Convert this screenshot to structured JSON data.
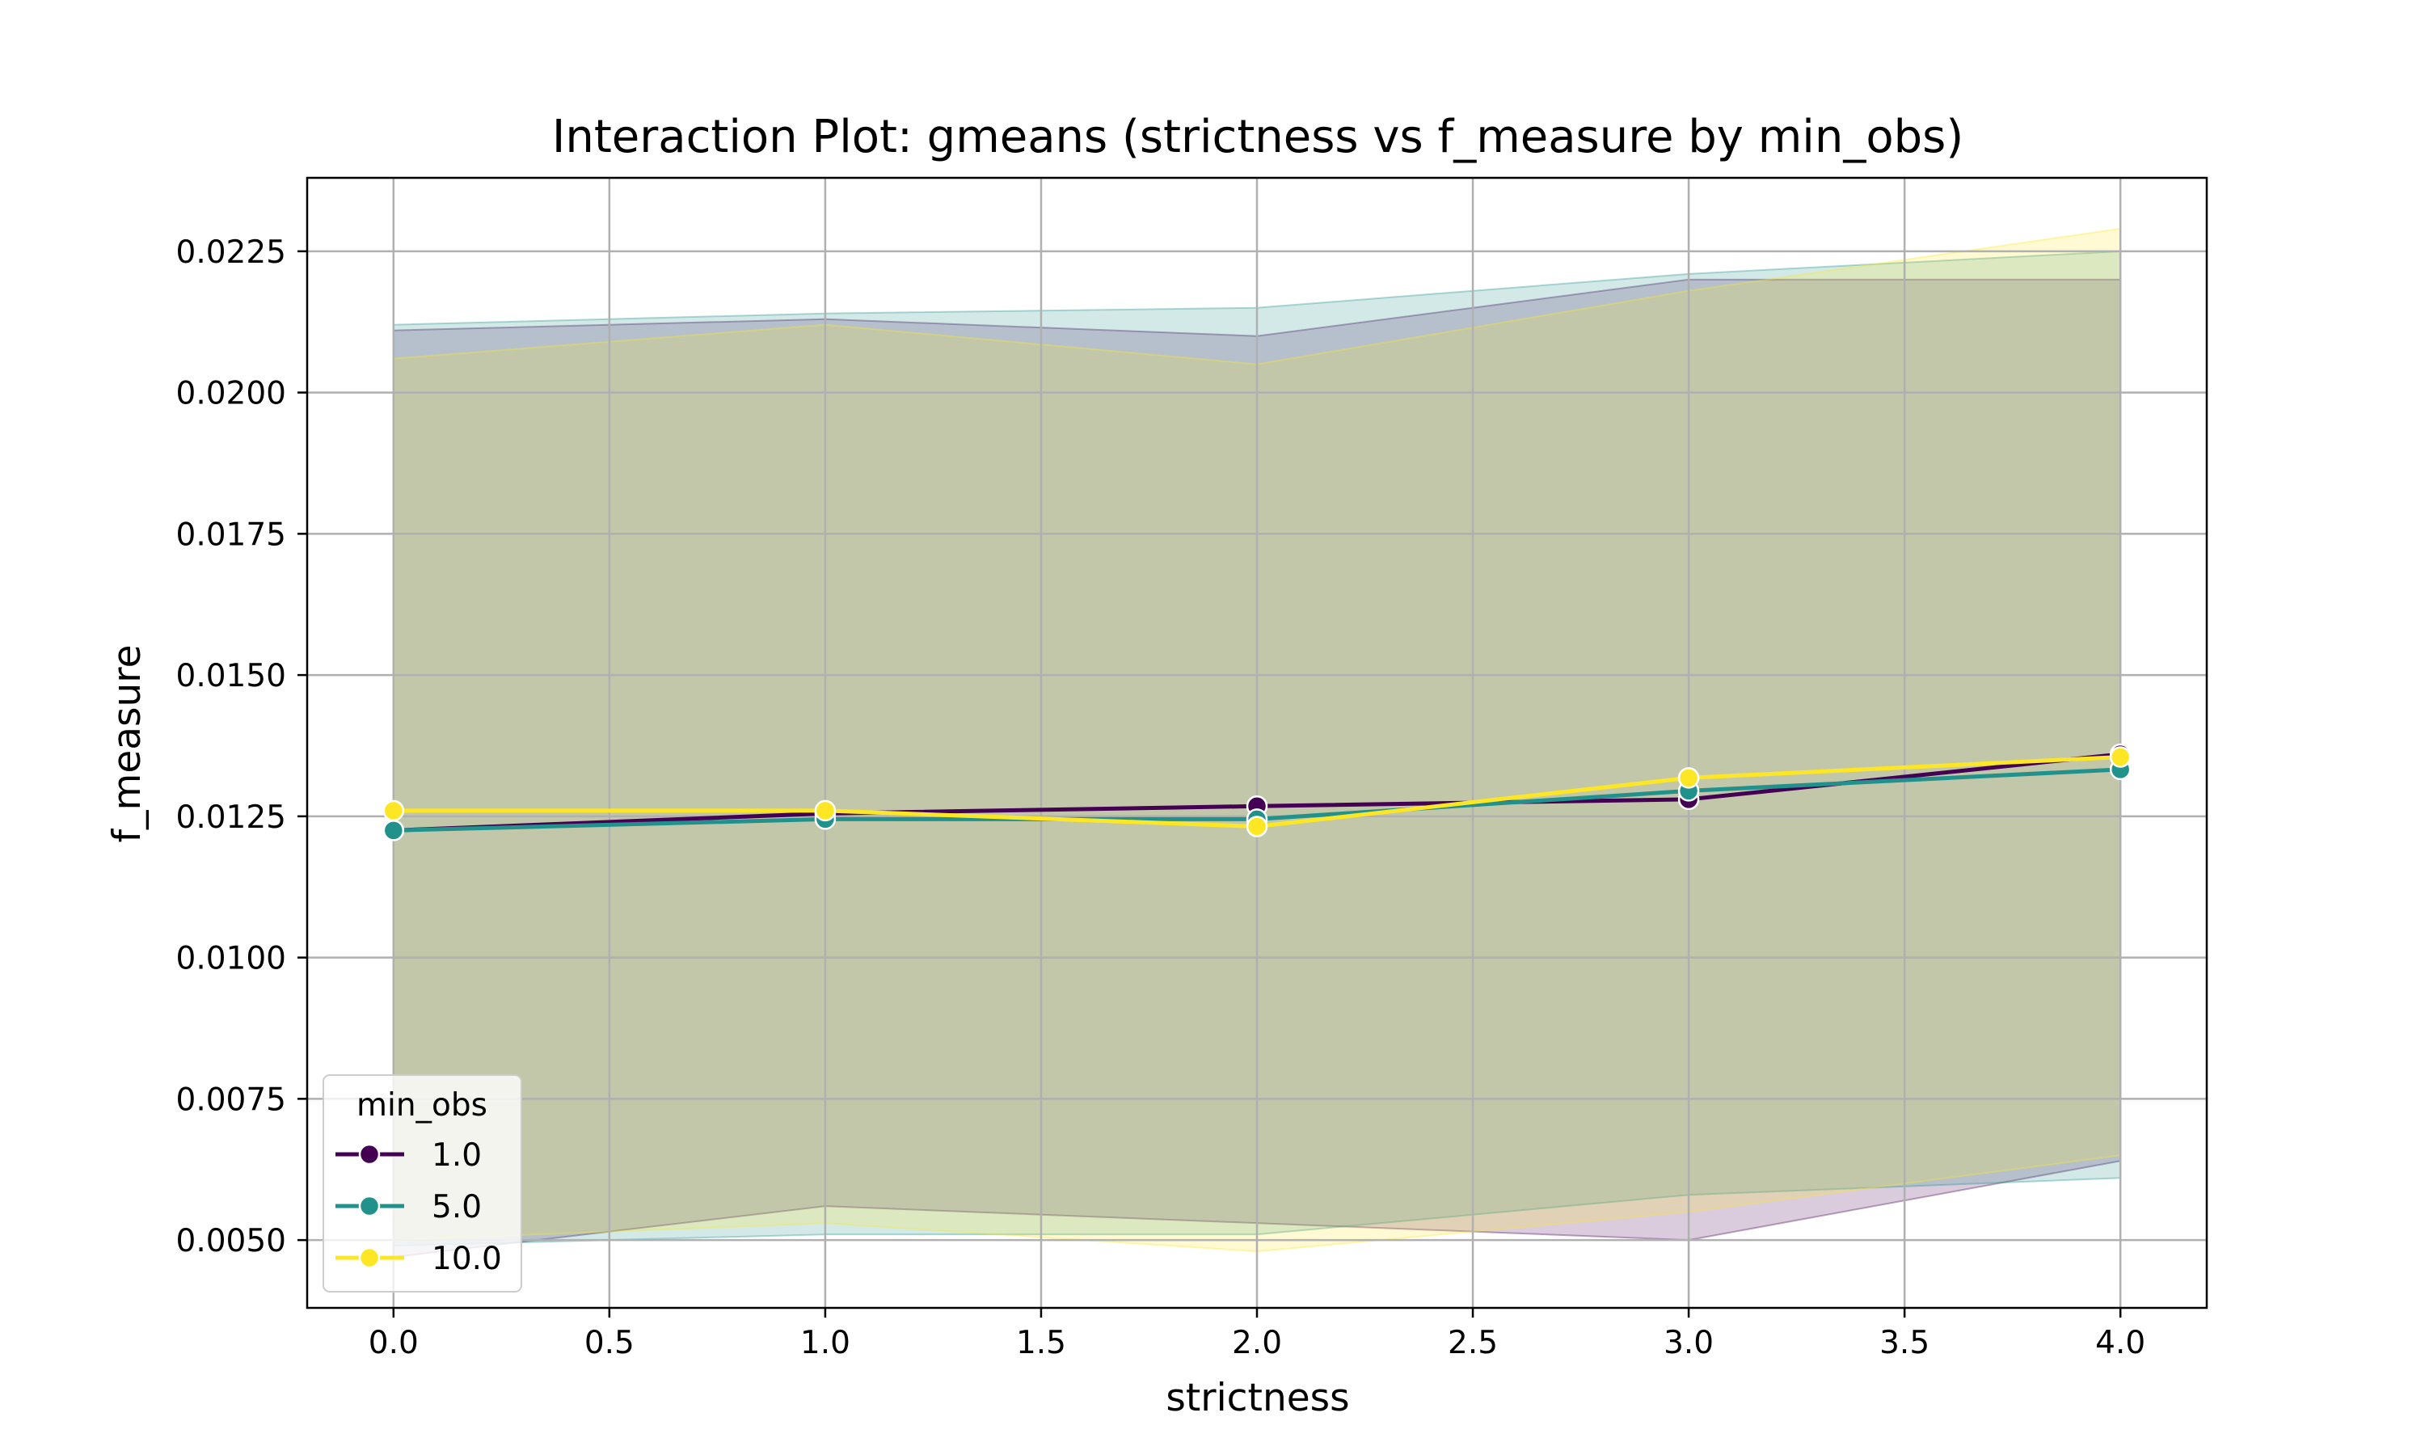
{
  "chart_data": {
    "type": "line",
    "title": "Interaction Plot: gmeans (strictness vs f_measure by min_obs)",
    "xlabel": "strictness",
    "ylabel": "f_measure",
    "x": [
      0.0,
      1.0,
      2.0,
      3.0,
      4.0
    ],
    "xlim": [
      -0.2,
      4.2
    ],
    "ylim": [
      0.0038,
      0.0238
    ],
    "xticks": [
      "0.0",
      "0.5",
      "1.0",
      "1.5",
      "2.0",
      "2.5",
      "3.0",
      "3.5",
      "4.0"
    ],
    "yticks": [
      "0.0050",
      "0.0075",
      "0.0100",
      "0.0125",
      "0.0150",
      "0.0175",
      "0.0200",
      "0.0225"
    ],
    "grid": true,
    "legend": {
      "title": "min_obs",
      "placement": "lower-left"
    },
    "series": [
      {
        "name": "1.0",
        "color": "#440154",
        "values": [
          0.01225,
          0.01255,
          0.01268,
          0.0128,
          0.0136
        ],
        "ci_upper": [
          0.0211,
          0.0213,
          0.021,
          0.022,
          0.022
        ],
        "ci_lower": [
          0.0047,
          0.0056,
          0.0053,
          0.005,
          0.0064
        ]
      },
      {
        "name": "5.0",
        "color": "#21918c",
        "values": [
          0.01225,
          0.01245,
          0.01245,
          0.01295,
          0.01333
        ],
        "ci_upper": [
          0.0212,
          0.0214,
          0.0215,
          0.0221,
          0.0225
        ],
        "ci_lower": [
          0.0049,
          0.0051,
          0.0051,
          0.0058,
          0.0061
        ]
      },
      {
        "name": "10.0",
        "color": "#fde725",
        "values": [
          0.0126,
          0.0126,
          0.01232,
          0.01318,
          0.01355
        ],
        "ci_upper": [
          0.0206,
          0.0212,
          0.0205,
          0.0218,
          0.0229
        ],
        "ci_lower": [
          0.005,
          0.0053,
          0.0048,
          0.0055,
          0.0065
        ]
      }
    ]
  }
}
